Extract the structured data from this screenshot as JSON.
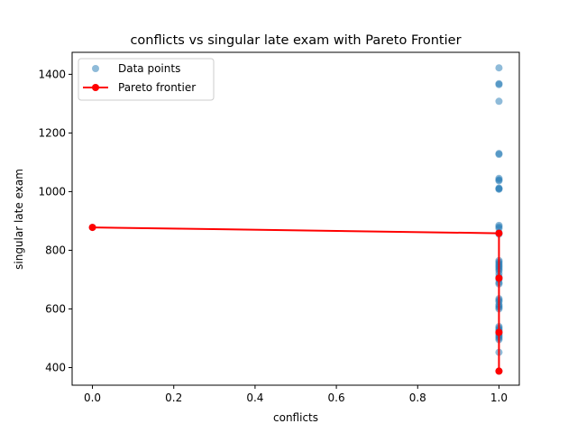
{
  "chart_data": {
    "type": "scatter",
    "title": "conflicts vs singular late exam with Pareto Frontier",
    "xlabel": "conflicts",
    "ylabel": "singular late exam",
    "xlim": [
      -0.05,
      1.05
    ],
    "ylim": [
      340,
      1475
    ],
    "xticks": [
      0.0,
      0.2,
      0.4,
      0.6,
      0.8,
      1.0
    ],
    "xtick_labels": [
      "0.0",
      "0.2",
      "0.4",
      "0.6",
      "0.8",
      "1.0"
    ],
    "yticks": [
      400,
      600,
      800,
      1000,
      1200,
      1400
    ],
    "ytick_labels": [
      "400",
      "600",
      "800",
      "1000",
      "1200",
      "1400"
    ],
    "grid": false,
    "legend_position": "top-left",
    "legend": [
      {
        "label": "Data points",
        "type": "scatter",
        "color": "#1f77b4"
      },
      {
        "label": "Pareto frontier",
        "type": "line",
        "color": "#ff0000"
      }
    ],
    "series": [
      {
        "name": "Data points",
        "color": "#1f77b4",
        "alpha": 0.5,
        "points": [
          [
            0,
            878
          ],
          [
            1,
            1422
          ],
          [
            1,
            1368
          ],
          [
            1,
            1365
          ],
          [
            1,
            1308
          ],
          [
            1,
            1130
          ],
          [
            1,
            1127
          ],
          [
            1,
            1045
          ],
          [
            1,
            1040
          ],
          [
            1,
            1037
          ],
          [
            1,
            1012
          ],
          [
            1,
            1010
          ],
          [
            1,
            1008
          ],
          [
            1,
            885
          ],
          [
            1,
            880
          ],
          [
            1,
            875
          ],
          [
            1,
            860
          ],
          [
            1,
            855
          ],
          [
            1,
            765
          ],
          [
            1,
            760
          ],
          [
            1,
            755
          ],
          [
            1,
            750
          ],
          [
            1,
            745
          ],
          [
            1,
            740
          ],
          [
            1,
            735
          ],
          [
            1,
            730
          ],
          [
            1,
            720
          ],
          [
            1,
            710
          ],
          [
            1,
            705
          ],
          [
            1,
            700
          ],
          [
            1,
            690
          ],
          [
            1,
            685
          ],
          [
            1,
            635
          ],
          [
            1,
            630
          ],
          [
            1,
            625
          ],
          [
            1,
            615
          ],
          [
            1,
            610
          ],
          [
            1,
            605
          ],
          [
            1,
            600
          ],
          [
            1,
            540
          ],
          [
            1,
            535
          ],
          [
            1,
            530
          ],
          [
            1,
            525
          ],
          [
            1,
            520
          ],
          [
            1,
            515
          ],
          [
            1,
            510
          ],
          [
            1,
            505
          ],
          [
            1,
            500
          ],
          [
            1,
            495
          ],
          [
            1,
            452
          ],
          [
            1,
            388
          ]
        ]
      },
      {
        "name": "Pareto frontier",
        "color": "#ff0000",
        "points": [
          [
            0,
            878
          ],
          [
            1,
            858
          ],
          [
            1,
            705
          ],
          [
            1,
            520
          ],
          [
            1,
            388
          ]
        ]
      }
    ]
  }
}
